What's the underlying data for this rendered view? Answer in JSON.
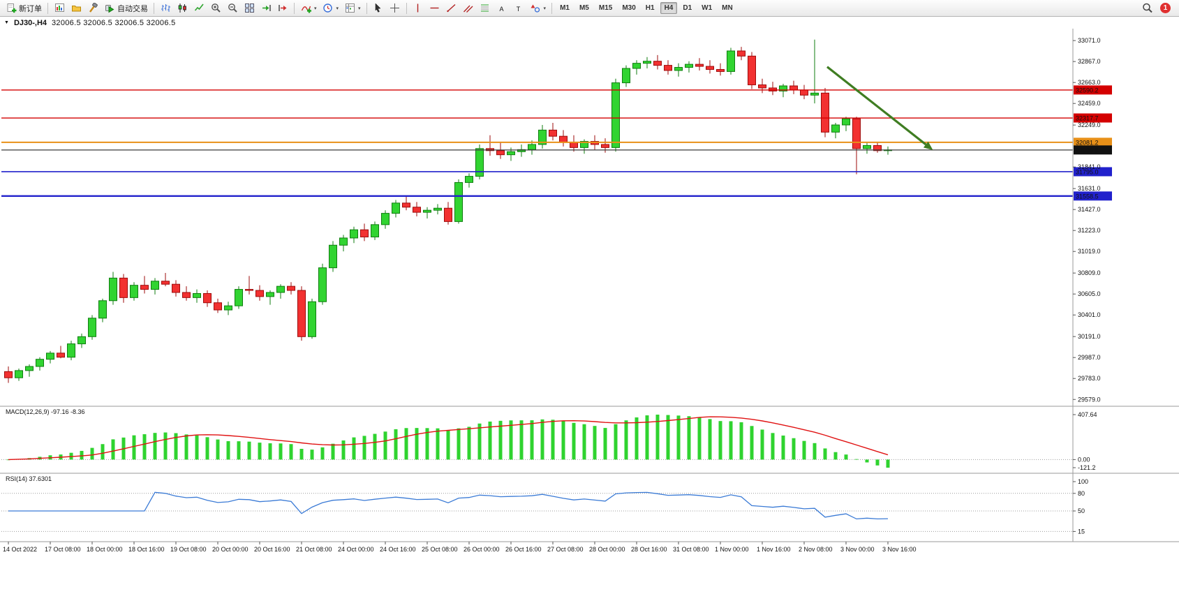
{
  "toolbar": {
    "notification_count": "1",
    "items": [
      {
        "type": "button",
        "name": "new-order-button",
        "icon": "new-order",
        "label": "新订单"
      },
      {
        "type": "sep"
      },
      {
        "type": "button",
        "name": "new-chart-button",
        "icon": "new-chart"
      },
      {
        "type": "button",
        "name": "profiles-button",
        "icon": "profiles"
      },
      {
        "type": "button",
        "name": "strategy-tester-button",
        "icon": "tester"
      },
      {
        "type": "button",
        "name": "auto-trading-button",
        "icon": "autotrade",
        "label": "自动交易"
      },
      {
        "type": "sep"
      },
      {
        "type": "button",
        "name": "bar-chart-button",
        "icon": "bars"
      },
      {
        "type": "button",
        "name": "candlestick-chart-button",
        "icon": "candles"
      },
      {
        "type": "button",
        "name": "line-chart-button",
        "icon": "linechart"
      },
      {
        "type": "button",
        "name": "zoom-in-button",
        "icon": "zoom-in"
      },
      {
        "type": "button",
        "name": "zoom-out-button",
        "icon": "zoom-out"
      },
      {
        "type": "button",
        "name": "tile-windows-button",
        "icon": "tile"
      },
      {
        "type": "button",
        "name": "auto-scroll-button",
        "icon": "autoscroll"
      },
      {
        "type": "button",
        "name": "chart-shift-button",
        "icon": "shiftend"
      },
      {
        "type": "sep"
      },
      {
        "type": "button",
        "name": "indicators-button",
        "icon": "indicators",
        "caret": true
      },
      {
        "type": "button",
        "name": "periods-button",
        "icon": "periods",
        "caret": true
      },
      {
        "type": "button",
        "name": "templates-button",
        "icon": "template",
        "caret": true
      },
      {
        "type": "sep"
      },
      {
        "type": "button",
        "name": "cursor-button",
        "icon": "cursor"
      },
      {
        "type": "button",
        "name": "crosshair-button",
        "icon": "crosshair"
      },
      {
        "type": "sep"
      },
      {
        "type": "button",
        "name": "vertical-line-button",
        "icon": "vline"
      },
      {
        "type": "button",
        "name": "horizontal-line-button",
        "icon": "hline"
      },
      {
        "type": "button",
        "name": "trendline-button",
        "icon": "trendline"
      },
      {
        "type": "button",
        "name": "channel-button",
        "icon": "channel"
      },
      {
        "type": "button",
        "name": "fibonacci-button",
        "icon": "fibo"
      },
      {
        "type": "button",
        "name": "text-button",
        "icon": "text"
      },
      {
        "type": "button",
        "name": "text-label-button",
        "icon": "label"
      },
      {
        "type": "button",
        "name": "arrows-button",
        "icon": "shapes",
        "caret": true
      },
      {
        "type": "sep"
      },
      {
        "type": "tf",
        "label": "M1"
      },
      {
        "type": "tf",
        "label": "M5"
      },
      {
        "type": "tf",
        "label": "M15"
      },
      {
        "type": "tf",
        "label": "M30"
      },
      {
        "type": "tf",
        "label": "H1"
      },
      {
        "type": "tf",
        "label": "H4",
        "active": true
      },
      {
        "type": "tf",
        "label": "D1"
      },
      {
        "type": "tf",
        "label": "W1"
      },
      {
        "type": "tf",
        "label": "MN"
      }
    ]
  },
  "chart": {
    "type": "candlestick",
    "title": {
      "symbol": "DJ30-,H4",
      "ohlc": "32006.5 32006.5 32006.5 32006.5"
    },
    "price_axis": {
      "ticks": [
        33071.0,
        32867.0,
        32663.0,
        32459.0,
        32249.0,
        31841.0,
        31631.0,
        31427.0,
        31223.0,
        31019.0,
        30809.0,
        30605.0,
        30401.0,
        30191.0,
        29987.0,
        29783.0,
        29579.0
      ]
    },
    "time_axis": {
      "labels": [
        "14 Oct 2022",
        "17 Oct 08:00",
        "18 Oct 00:00",
        "18 Oct 16:00",
        "19 Oct 08:00",
        "20 Oct 00:00",
        "20 Oct 16:00",
        "21 Oct 08:00",
        "24 Oct 00:00",
        "24 Oct 16:00",
        "25 Oct 08:00",
        "26 Oct 00:00",
        "26 Oct 16:00",
        "27 Oct 08:00",
        "28 Oct 00:00",
        "28 Oct 16:00",
        "31 Oct 08:00",
        "1 Nov 00:00",
        "1 Nov 16:00",
        "2 Nov 08:00",
        "3 Nov 00:00",
        "3 Nov 16:00"
      ],
      "candles_per_label": 4
    },
    "hlines": [
      {
        "price": 32590.2,
        "color": "#d40000",
        "width": 1.4,
        "badge": "#d40000"
      },
      {
        "price": 32317.7,
        "color": "#d40000",
        "width": 1.4,
        "badge": "#d40000"
      },
      {
        "price": 32081.2,
        "color": "#e89018",
        "width": 2.0,
        "badge": "#e89018"
      },
      {
        "price": 32006.5,
        "color": "#3a3a3a",
        "width": 1.2,
        "badge": "#111111"
      },
      {
        "price": 31795.0,
        "color": "#2121cc",
        "width": 1.6,
        "badge": "#2121cc"
      },
      {
        "price": 31558.5,
        "color": "#2121cc",
        "width": 2.4,
        "badge": "#2121cc"
      }
    ],
    "arrow": {
      "from": {
        "index": 78.2,
        "price": 32815
      },
      "to": {
        "index": 88.3,
        "price": 32005
      }
    },
    "shift_marker_index": 86.5,
    "candles": [
      [
        29850,
        29900,
        29740,
        29790
      ],
      [
        29790,
        29880,
        29760,
        29860
      ],
      [
        29860,
        29920,
        29800,
        29900
      ],
      [
        29900,
        29990,
        29860,
        29970
      ],
      [
        29970,
        30050,
        29930,
        30030
      ],
      [
        30030,
        30100,
        29980,
        29990
      ],
      [
        29990,
        30150,
        29960,
        30120
      ],
      [
        30120,
        30220,
        30080,
        30190
      ],
      [
        30190,
        30400,
        30160,
        30370
      ],
      [
        30370,
        30560,
        30330,
        30540
      ],
      [
        30540,
        30820,
        30500,
        30760
      ],
      [
        30760,
        30800,
        30520,
        30570
      ],
      [
        30570,
        30720,
        30540,
        30690
      ],
      [
        30690,
        30780,
        30610,
        30650
      ],
      [
        30650,
        30760,
        30600,
        30730
      ],
      [
        30730,
        30810,
        30680,
        30700
      ],
      [
        30700,
        30740,
        30580,
        30620
      ],
      [
        30620,
        30680,
        30540,
        30570
      ],
      [
        30570,
        30650,
        30520,
        30610
      ],
      [
        30610,
        30640,
        30480,
        30520
      ],
      [
        30520,
        30560,
        30420,
        30450
      ],
      [
        30450,
        30530,
        30400,
        30490
      ],
      [
        30490,
        30680,
        30460,
        30650
      ],
      [
        30650,
        30780,
        30600,
        30640
      ],
      [
        30640,
        30690,
        30540,
        30580
      ],
      [
        30580,
        30640,
        30500,
        30620
      ],
      [
        30620,
        30700,
        30560,
        30680
      ],
      [
        30680,
        30720,
        30600,
        30640
      ],
      [
        30640,
        30680,
        30150,
        30190
      ],
      [
        30190,
        30560,
        30170,
        30530
      ],
      [
        30530,
        30900,
        30500,
        30860
      ],
      [
        30860,
        31120,
        30820,
        31080
      ],
      [
        31080,
        31180,
        31020,
        31150
      ],
      [
        31150,
        31260,
        31100,
        31230
      ],
      [
        31230,
        31290,
        31120,
        31160
      ],
      [
        31160,
        31310,
        31130,
        31280
      ],
      [
        31280,
        31420,
        31240,
        31390
      ],
      [
        31390,
        31520,
        31350,
        31490
      ],
      [
        31490,
        31550,
        31420,
        31450
      ],
      [
        31450,
        31500,
        31360,
        31400
      ],
      [
        31400,
        31450,
        31340,
        31420
      ],
      [
        31420,
        31480,
        31380,
        31440
      ],
      [
        31440,
        31500,
        31280,
        31310
      ],
      [
        31310,
        31720,
        31290,
        31690
      ],
      [
        31690,
        31780,
        31640,
        31750
      ],
      [
        31750,
        32060,
        31720,
        32020
      ],
      [
        32020,
        32150,
        31950,
        32000
      ],
      [
        32000,
        32080,
        31920,
        31960
      ],
      [
        31960,
        32030,
        31900,
        31990
      ],
      [
        31990,
        32060,
        31940,
        32010
      ],
      [
        32010,
        32100,
        31960,
        32060
      ],
      [
        32060,
        32250,
        32020,
        32200
      ],
      [
        32200,
        32270,
        32100,
        32140
      ],
      [
        32140,
        32200,
        32040,
        32080
      ],
      [
        32080,
        32150,
        31990,
        32030
      ],
      [
        32030,
        32110,
        31970,
        32090
      ],
      [
        32090,
        32150,
        32010,
        32060
      ],
      [
        32060,
        32120,
        31980,
        32030
      ],
      [
        32030,
        32700,
        31990,
        32660
      ],
      [
        32660,
        32830,
        32620,
        32800
      ],
      [
        32800,
        32880,
        32740,
        32850
      ],
      [
        32850,
        32910,
        32800,
        32870
      ],
      [
        32870,
        32930,
        32790,
        32830
      ],
      [
        32830,
        32880,
        32740,
        32780
      ],
      [
        32780,
        32850,
        32720,
        32810
      ],
      [
        32810,
        32870,
        32760,
        32840
      ],
      [
        32840,
        32900,
        32780,
        32820
      ],
      [
        32820,
        32880,
        32750,
        32790
      ],
      [
        32790,
        32850,
        32730,
        32770
      ],
      [
        32770,
        33000,
        32740,
        32970
      ],
      [
        32970,
        33010,
        32880,
        32920
      ],
      [
        32920,
        32960,
        32600,
        32640
      ],
      [
        32640,
        32700,
        32560,
        32610
      ],
      [
        32610,
        32670,
        32540,
        32580
      ],
      [
        32580,
        32650,
        32520,
        32630
      ],
      [
        32630,
        32680,
        32550,
        32590
      ],
      [
        32590,
        32640,
        32500,
        32540
      ],
      [
        32540,
        33080,
        32460,
        32560
      ],
      [
        32560,
        32610,
        32130,
        32180
      ],
      [
        32180,
        32270,
        32120,
        32250
      ],
      [
        32250,
        32330,
        32190,
        32310
      ],
      [
        32310,
        32330,
        31770,
        32020
      ],
      [
        32020,
        32080,
        31970,
        32050
      ],
      [
        32050,
        32080,
        31980,
        32000
      ],
      [
        32000,
        32040,
        31960,
        32006.5
      ]
    ],
    "colors": {
      "bull_fill": "#31d431",
      "bull_stroke": "#0f7d0f",
      "bear_fill": "#f23131",
      "bear_stroke": "#9e0b0b",
      "macd_hist": "#2fd32f",
      "macd_signal": "#e01212",
      "rsi_line": "#3b7bd6",
      "axis_line": "#9a9a9a",
      "arrow": "#3f7d22"
    }
  },
  "indicators": {
    "macd": {
      "label": "MACD(12,26,9)",
      "values": "-97.16 -8.36",
      "axis": [
        "407.64",
        "0.00",
        "-121.2"
      ]
    },
    "rsi": {
      "label": "RSI(14)",
      "value": "37.6301",
      "levels": [
        100,
        80,
        50,
        15
      ]
    }
  }
}
